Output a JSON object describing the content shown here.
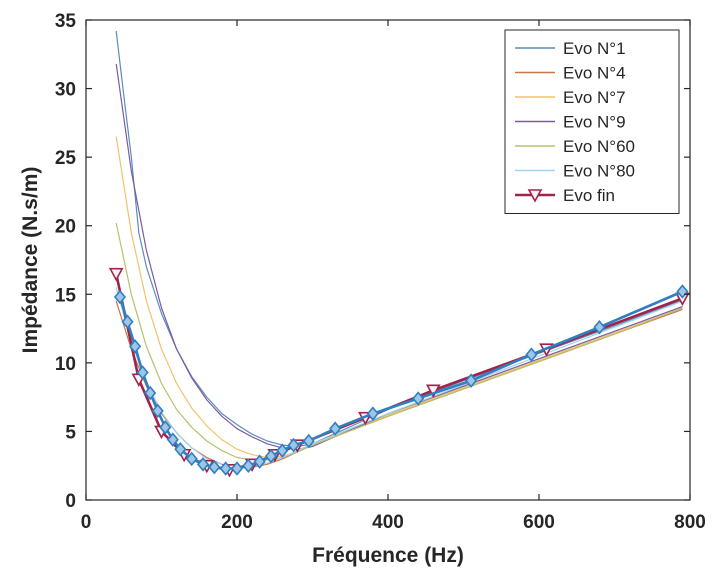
{
  "chart_data": {
    "type": "line",
    "xlabel": "Fréquence (Hz)",
    "ylabel": "Impédance (N.s/m)",
    "xlim": [
      0,
      800
    ],
    "ylim": [
      0,
      35
    ],
    "xticks": [
      0,
      200,
      400,
      600,
      800
    ],
    "yticks": [
      0,
      5,
      10,
      15,
      20,
      25,
      30,
      35
    ],
    "grid": false,
    "legend_position": "top-right",
    "series": [
      {
        "name": "Evo N°1",
        "color": "#5b8db8",
        "x": [
          40,
          50,
          60,
          70,
          80,
          100,
          120,
          140,
          160,
          180,
          200,
          220,
          240,
          260,
          280,
          300,
          400,
          500,
          600,
          700,
          790
        ],
        "y": [
          34.2,
          29.5,
          25.0,
          19.5,
          17.0,
          13.6,
          11.0,
          9.0,
          7.5,
          6.3,
          5.5,
          4.8,
          4.3,
          4.0,
          3.9,
          4.1,
          6.6,
          8.7,
          10.7,
          12.7,
          14.6
        ]
      },
      {
        "name": "Evo N°4",
        "color": "#c8764a",
        "x": [
          40,
          60,
          80,
          100,
          120,
          140,
          160,
          180,
          200,
          220,
          240,
          260,
          280,
          300,
          400,
          500,
          600,
          700,
          790
        ],
        "y": [
          14.5,
          11.0,
          8.3,
          6.3,
          4.9,
          3.8,
          3.1,
          2.6,
          2.4,
          2.4,
          2.6,
          3.0,
          3.5,
          4.0,
          6.1,
          8.1,
          10.1,
          12.1,
          13.9
        ]
      },
      {
        "name": "Evo N°7",
        "color": "#f2c26b",
        "x": [
          40,
          60,
          80,
          100,
          120,
          140,
          160,
          180,
          200,
          220,
          240,
          260,
          280,
          300,
          400,
          500,
          600,
          700,
          790
        ],
        "y": [
          26.5,
          19.5,
          14.5,
          11.0,
          8.5,
          6.7,
          5.4,
          4.4,
          3.7,
          3.3,
          3.1,
          3.2,
          3.5,
          4.0,
          6.2,
          8.2,
          10.2,
          12.2,
          14.0
        ]
      },
      {
        "name": "Evo N°9",
        "color": "#7b5aa6",
        "x": [
          40,
          60,
          80,
          100,
          120,
          140,
          160,
          180,
          200,
          220,
          240,
          260,
          280,
          300,
          400,
          500,
          600,
          700,
          790
        ],
        "y": [
          31.8,
          24.0,
          18.2,
          14.0,
          11.0,
          8.9,
          7.3,
          6.1,
          5.2,
          4.6,
          4.1,
          3.8,
          3.7,
          3.9,
          6.3,
          8.3,
          10.3,
          12.3,
          14.1
        ]
      },
      {
        "name": "Evo N°60",
        "color": "#b5c26b",
        "x": [
          40,
          60,
          80,
          100,
          120,
          140,
          160,
          180,
          200,
          220,
          240,
          260,
          280,
          300,
          400,
          500,
          600,
          700,
          790
        ],
        "y": [
          20.2,
          15.0,
          11.2,
          8.5,
          6.6,
          5.3,
          4.3,
          3.6,
          3.1,
          2.9,
          2.9,
          3.1,
          3.5,
          4.0,
          6.1,
          8.1,
          10.1,
          12.1,
          14.0
        ]
      },
      {
        "name": "Evo N°80",
        "color": "#9fd3ee",
        "x": [
          40,
          60,
          80,
          100,
          120,
          140,
          160,
          180,
          200,
          220,
          240,
          260,
          280,
          300,
          400,
          500,
          600,
          700,
          790
        ],
        "y": [
          15.5,
          11.5,
          8.6,
          6.4,
          4.9,
          3.8,
          3.0,
          2.6,
          2.4,
          2.5,
          2.7,
          3.1,
          3.6,
          4.1,
          6.3,
          8.4,
          10.5,
          12.6,
          14.5
        ]
      },
      {
        "name": "Evo fin",
        "color": "#a3224a",
        "marker": "triangle-down",
        "x": [
          40,
          70,
          100,
          130,
          160,
          190,
          220,
          250,
          280,
          370,
          460,
          610,
          790
        ],
        "y": [
          16.5,
          8.8,
          5.0,
          3.3,
          2.5,
          2.2,
          2.6,
          3.3,
          4.0,
          6.0,
          8.0,
          11.0,
          14.7
        ]
      },
      {
        "name": "",
        "color": "#2f7fc1",
        "marker": "diamond",
        "x": [
          45,
          55,
          65,
          75,
          85,
          95,
          105,
          115,
          125,
          140,
          155,
          170,
          185,
          200,
          215,
          230,
          245,
          260,
          275,
          295,
          330,
          380,
          440,
          510,
          590,
          680,
          790
        ],
        "y": [
          14.8,
          13.0,
          11.2,
          9.3,
          7.8,
          6.5,
          5.3,
          4.4,
          3.7,
          3.0,
          2.6,
          2.4,
          2.3,
          2.3,
          2.5,
          2.8,
          3.2,
          3.6,
          4.0,
          4.3,
          5.2,
          6.3,
          7.4,
          8.7,
          10.6,
          12.6,
          15.2
        ]
      }
    ]
  }
}
